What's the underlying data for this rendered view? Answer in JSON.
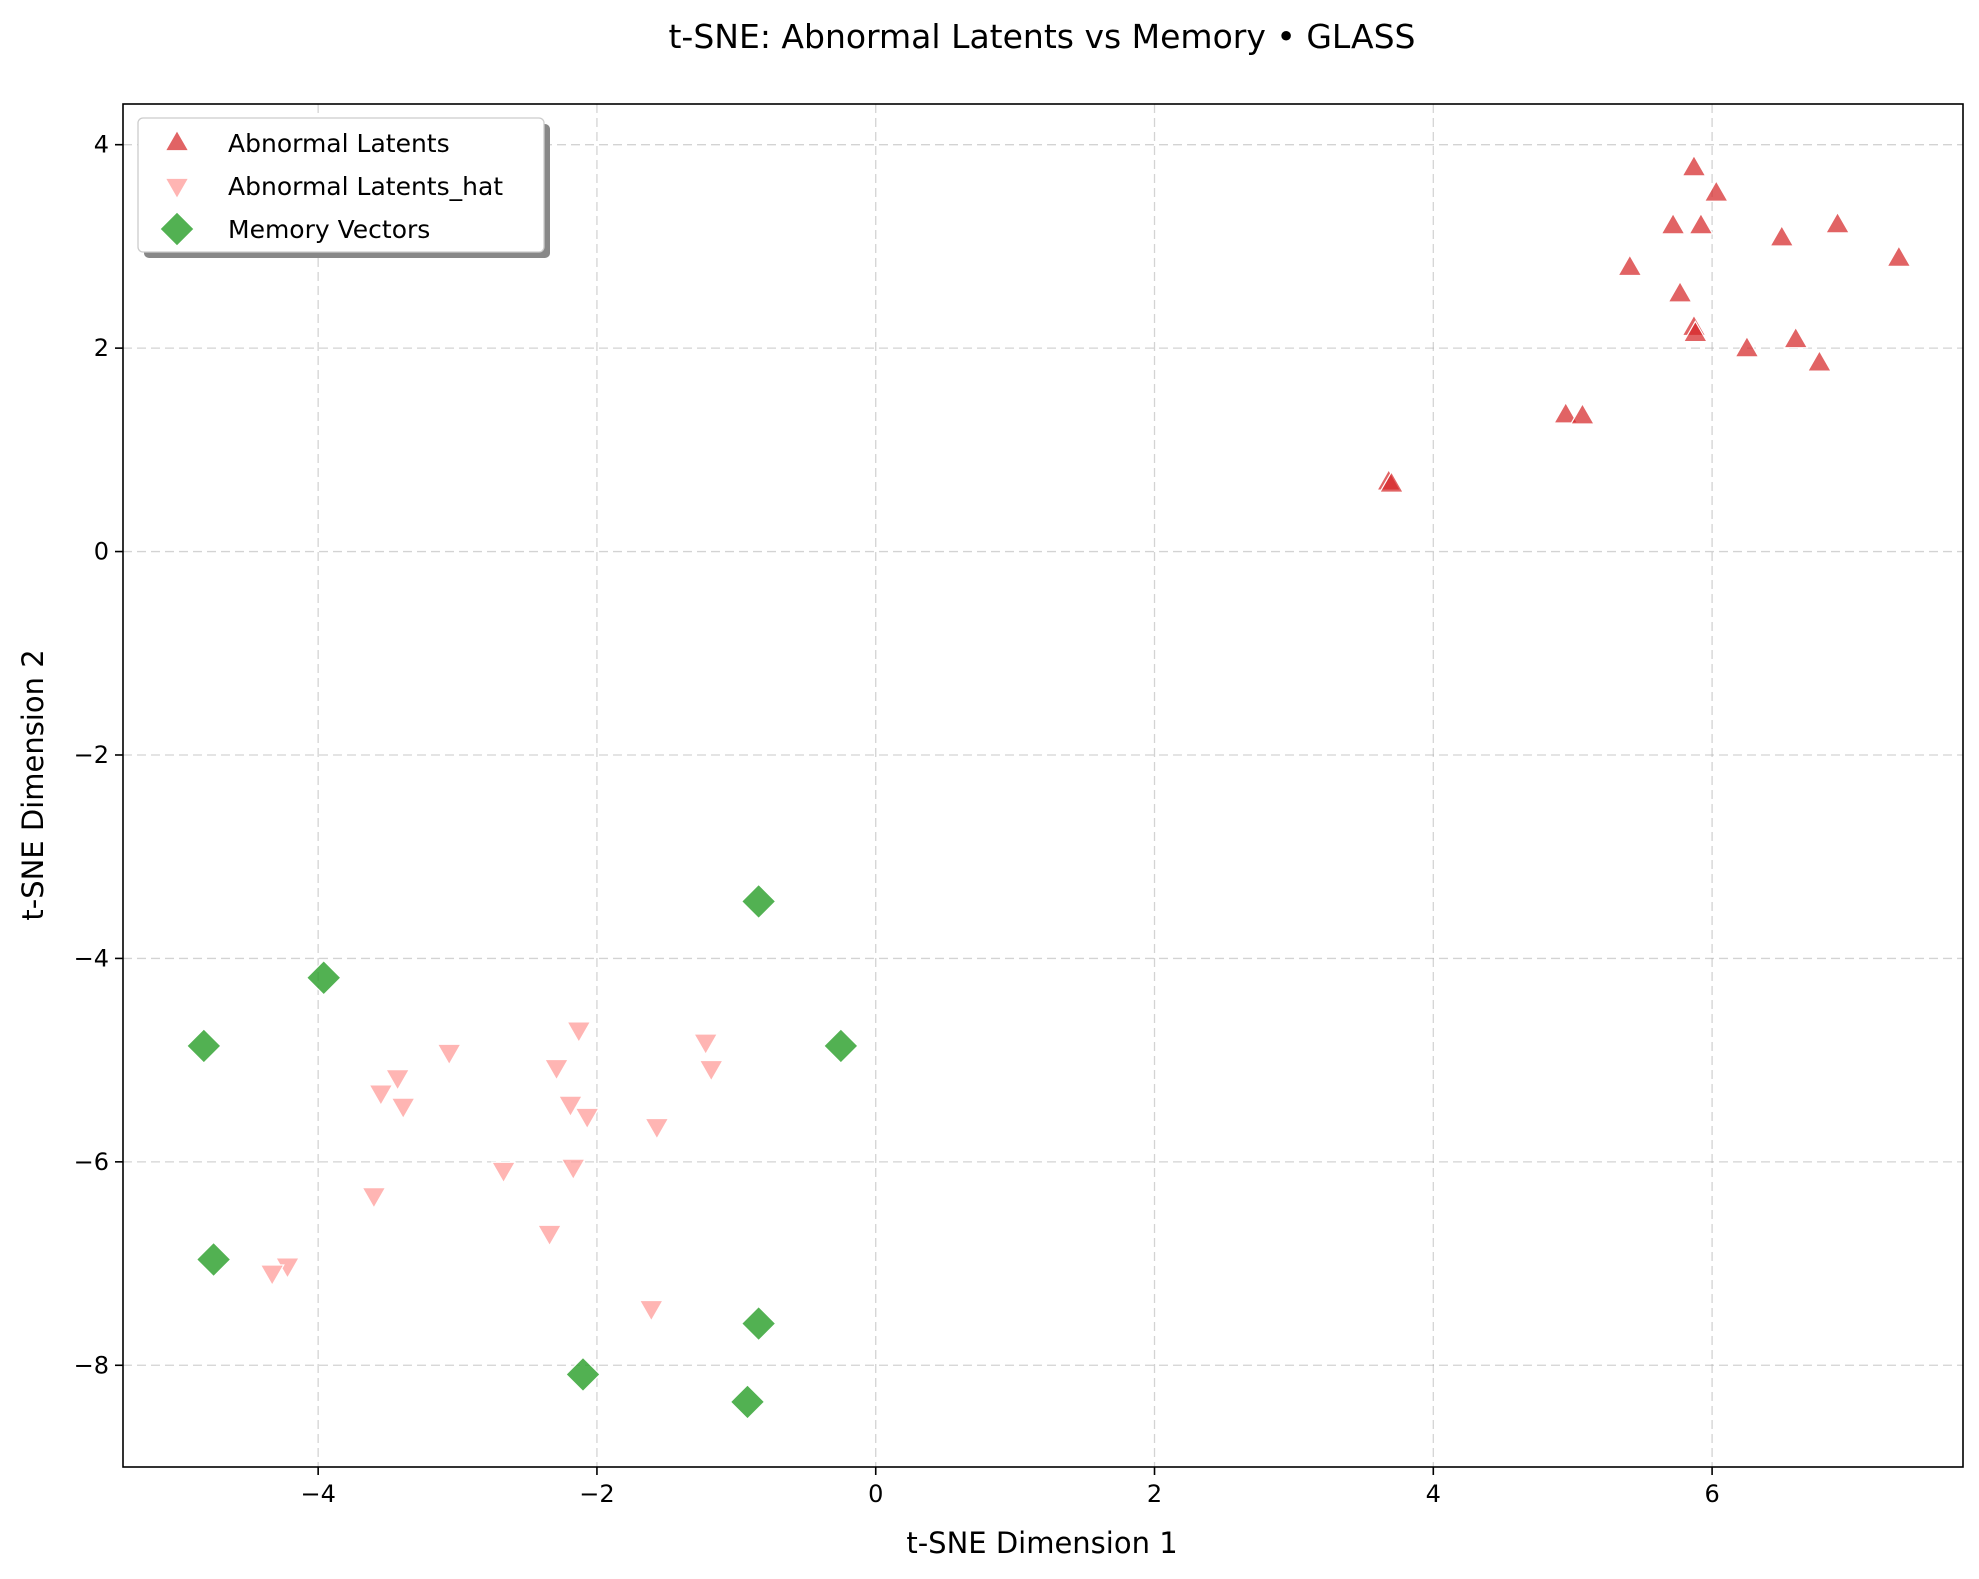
{
  "chart_data": {
    "type": "scatter",
    "title": "t-SNE: Abnormal Latents vs Memory • GLASS",
    "xlabel": "t-SNE Dimension 1",
    "ylabel": "t-SNE Dimension 2",
    "xlim": [
      -5.4,
      7.8
    ],
    "ylim": [
      -9.0,
      4.4
    ],
    "xticks": [
      -4,
      -2,
      0,
      2,
      4,
      6
    ],
    "yticks": [
      -8,
      -6,
      -4,
      -2,
      0,
      2,
      4
    ],
    "grid": true,
    "legend_position": "upper-left",
    "series": [
      {
        "name": "Abnormal Latents",
        "marker": "triangle-up",
        "color": "#d62728",
        "points": [
          [
            5.87,
            3.77
          ],
          [
            6.03,
            3.52
          ],
          [
            5.72,
            3.2
          ],
          [
            5.92,
            3.2
          ],
          [
            6.5,
            3.08
          ],
          [
            6.9,
            3.21
          ],
          [
            7.34,
            2.88
          ],
          [
            5.41,
            2.79
          ],
          [
            5.77,
            2.53
          ],
          [
            5.87,
            2.2
          ],
          [
            5.88,
            2.14
          ],
          [
            6.25,
            1.99
          ],
          [
            6.6,
            2.08
          ],
          [
            6.77,
            1.85
          ],
          [
            4.95,
            1.34
          ],
          [
            5.07,
            1.33
          ],
          [
            3.68,
            0.68
          ],
          [
            3.7,
            0.66
          ]
        ]
      },
      {
        "name": "Abnormal Latents_hat",
        "marker": "triangle-down",
        "color": "#ff9896",
        "points": [
          [
            -2.13,
            -4.7
          ],
          [
            -3.06,
            -4.92
          ],
          [
            -1.22,
            -4.82
          ],
          [
            -1.18,
            -5.08
          ],
          [
            -2.29,
            -5.07
          ],
          [
            -3.43,
            -5.17
          ],
          [
            -3.55,
            -5.32
          ],
          [
            -3.39,
            -5.45
          ],
          [
            -2.19,
            -5.43
          ],
          [
            -2.07,
            -5.55
          ],
          [
            -1.57,
            -5.65
          ],
          [
            -2.67,
            -6.08
          ],
          [
            -2.17,
            -6.05
          ],
          [
            -3.6,
            -6.33
          ],
          [
            -2.34,
            -6.7
          ],
          [
            -4.22,
            -7.02
          ],
          [
            -4.33,
            -7.09
          ],
          [
            -1.61,
            -7.44
          ]
        ]
      },
      {
        "name": "Memory Vectors",
        "marker": "diamond",
        "color": "#2ca02c",
        "points": [
          [
            -0.84,
            -3.44
          ],
          [
            -3.96,
            -4.19
          ],
          [
            -4.82,
            -4.86
          ],
          [
            -0.25,
            -4.86
          ],
          [
            -4.75,
            -6.96
          ],
          [
            -0.84,
            -7.59
          ],
          [
            -2.1,
            -8.09
          ],
          [
            -0.92,
            -8.36
          ]
        ]
      }
    ]
  }
}
